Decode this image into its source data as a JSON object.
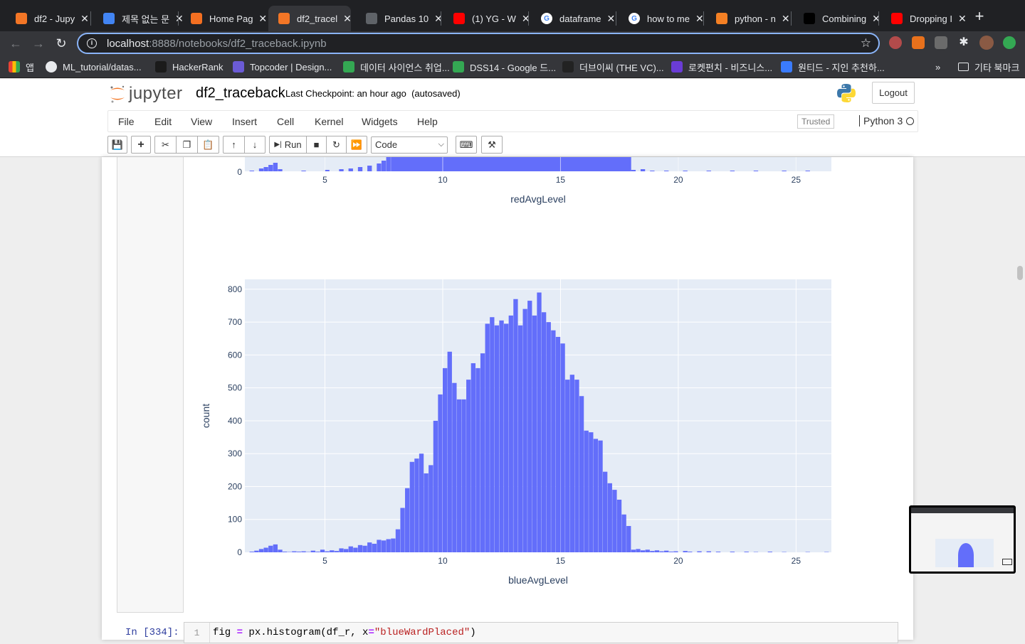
{
  "browser": {
    "tabs": [
      {
        "title": "df2 - Jupy",
        "icon": "jupyter-icon",
        "color": "#f37626"
      },
      {
        "title": "제목 없는 문",
        "icon": "docs-icon",
        "color": "#4285f4"
      },
      {
        "title": "Home Pag",
        "icon": "topcoder-icon",
        "color": "#f36f21"
      },
      {
        "title": "df2_tracel",
        "icon": "jupyter-icon",
        "color": "#f37626"
      },
      {
        "title": "Pandas 10",
        "icon": "globe-icon",
        "color": "#5f6368"
      },
      {
        "title": "(1) YG - W",
        "icon": "youtube-icon",
        "color": "#ff0000"
      },
      {
        "title": "dataframe",
        "icon": "google-icon",
        "color": "#ffffff"
      },
      {
        "title": "how to me",
        "icon": "google-icon",
        "color": "#ffffff"
      },
      {
        "title": "python - n",
        "icon": "stackoverflow-icon",
        "color": "#f48024"
      },
      {
        "title": "Combining",
        "icon": "dev-icon",
        "color": "#000000"
      },
      {
        "title": "Dropping I",
        "icon": "red-square-icon",
        "color": "#ff0000"
      }
    ],
    "url_host": "localhost",
    "url_path": ":8888/notebooks/df2_traceback.ipynb",
    "bookmarks": [
      {
        "label": "앱",
        "icon": "apps-grid-icon"
      },
      {
        "label": "ML_tutorial/datas...",
        "icon": "github-icon"
      },
      {
        "label": "HackerRank",
        "icon": "hackerrank-icon"
      },
      {
        "label": "Topcoder | Design...",
        "icon": "topcoder-icon"
      },
      {
        "label": "데이터 사이언스 취업...",
        "icon": "drive-icon"
      },
      {
        "label": "DSS14 - Google 드...",
        "icon": "drive-icon"
      },
      {
        "label": "더브이씨 (THE VC)...",
        "icon": "thevc-icon"
      },
      {
        "label": "로켓펀치 - 비즈니스...",
        "icon": "rocketpunch-icon"
      },
      {
        "label": "원티드 - 지인 추천하...",
        "icon": "wanted-icon"
      }
    ],
    "bookmarks_overflow": "»",
    "other_bookmarks": "기타 북마크"
  },
  "jupyter": {
    "logo_text": "jupyter",
    "notebook_name": "df2_traceback",
    "checkpoint": "Last Checkpoint: an hour ago",
    "autosave": "(autosaved)",
    "logout": "Logout",
    "menu": [
      "File",
      "Edit",
      "View",
      "Insert",
      "Cell",
      "Kernel",
      "Widgets",
      "Help"
    ],
    "trusted": "Trusted",
    "kernel": "Python 3",
    "run_label": "Run",
    "cell_type": "Code"
  },
  "cell": {
    "prompt": "In [334]:",
    "line_number": "1",
    "code_prefix": "fig ",
    "code_eq": "=",
    "code_mid": " px.histogram(df_r, x",
    "code_eq2": "=",
    "code_str": "\"blueWardPlaced\"",
    "code_end": ")"
  },
  "chart_data": [
    {
      "type": "bar",
      "title": "",
      "xlabel": "redAvgLevel",
      "ylabel": "",
      "visible_y_ticks": [
        0
      ],
      "x_ticks": [
        5,
        10,
        15,
        20,
        25
      ],
      "xlim": [
        1.6,
        26.5
      ],
      "note": "partially scrolled out of view; only the bottom of the bars is visible"
    },
    {
      "type": "bar",
      "title": "",
      "xlabel": "blueAvgLevel",
      "ylabel": "count",
      "xlim": [
        1.6,
        26.5
      ],
      "ylim": [
        0,
        830
      ],
      "x_ticks": [
        5,
        10,
        15,
        20,
        25
      ],
      "y_ticks": [
        0,
        100,
        200,
        300,
        400,
        500,
        600,
        700,
        800
      ],
      "bin_width": 0.2,
      "bar_color": "#636efa",
      "plot_bg": "#e5ecf6",
      "bins": [
        {
          "x": 1.9,
          "y": 2
        },
        {
          "x": 2.1,
          "y": 5
        },
        {
          "x": 2.3,
          "y": 10
        },
        {
          "x": 2.5,
          "y": 14
        },
        {
          "x": 2.7,
          "y": 20
        },
        {
          "x": 2.9,
          "y": 24
        },
        {
          "x": 3.1,
          "y": 8
        },
        {
          "x": 3.3,
          "y": 2
        },
        {
          "x": 3.5,
          "y": 1
        },
        {
          "x": 3.7,
          "y": 3
        },
        {
          "x": 3.9,
          "y": 2
        },
        {
          "x": 4.1,
          "y": 3
        },
        {
          "x": 4.3,
          "y": 1
        },
        {
          "x": 4.5,
          "y": 5
        },
        {
          "x": 4.7,
          "y": 2
        },
        {
          "x": 4.9,
          "y": 8
        },
        {
          "x": 5.1,
          "y": 3
        },
        {
          "x": 5.3,
          "y": 6
        },
        {
          "x": 5.5,
          "y": 4
        },
        {
          "x": 5.7,
          "y": 12
        },
        {
          "x": 5.9,
          "y": 10
        },
        {
          "x": 6.1,
          "y": 18
        },
        {
          "x": 6.3,
          "y": 14
        },
        {
          "x": 6.5,
          "y": 22
        },
        {
          "x": 6.7,
          "y": 20
        },
        {
          "x": 6.9,
          "y": 30
        },
        {
          "x": 7.1,
          "y": 26
        },
        {
          "x": 7.3,
          "y": 38
        },
        {
          "x": 7.5,
          "y": 36
        },
        {
          "x": 7.7,
          "y": 40
        },
        {
          "x": 7.9,
          "y": 42
        },
        {
          "x": 8.1,
          "y": 70
        },
        {
          "x": 8.3,
          "y": 135
        },
        {
          "x": 8.5,
          "y": 195
        },
        {
          "x": 8.7,
          "y": 275
        },
        {
          "x": 8.9,
          "y": 285
        },
        {
          "x": 9.1,
          "y": 300
        },
        {
          "x": 9.3,
          "y": 240
        },
        {
          "x": 9.5,
          "y": 265
        },
        {
          "x": 9.7,
          "y": 400
        },
        {
          "x": 9.9,
          "y": 480
        },
        {
          "x": 10.1,
          "y": 560
        },
        {
          "x": 10.3,
          "y": 610
        },
        {
          "x": 10.5,
          "y": 515
        },
        {
          "x": 10.7,
          "y": 465
        },
        {
          "x": 10.9,
          "y": 465
        },
        {
          "x": 11.1,
          "y": 525
        },
        {
          "x": 11.3,
          "y": 575
        },
        {
          "x": 11.5,
          "y": 560
        },
        {
          "x": 11.7,
          "y": 605
        },
        {
          "x": 11.9,
          "y": 695
        },
        {
          "x": 12.1,
          "y": 715
        },
        {
          "x": 12.3,
          "y": 690
        },
        {
          "x": 12.5,
          "y": 705
        },
        {
          "x": 12.7,
          "y": 695
        },
        {
          "x": 12.9,
          "y": 720
        },
        {
          "x": 13.1,
          "y": 770
        },
        {
          "x": 13.3,
          "y": 690
        },
        {
          "x": 13.5,
          "y": 740
        },
        {
          "x": 13.7,
          "y": 765
        },
        {
          "x": 13.9,
          "y": 720
        },
        {
          "x": 14.1,
          "y": 790
        },
        {
          "x": 14.3,
          "y": 730
        },
        {
          "x": 14.5,
          "y": 700
        },
        {
          "x": 14.7,
          "y": 675
        },
        {
          "x": 14.9,
          "y": 655
        },
        {
          "x": 15.1,
          "y": 635
        },
        {
          "x": 15.3,
          "y": 525
        },
        {
          "x": 15.5,
          "y": 540
        },
        {
          "x": 15.7,
          "y": 525
        },
        {
          "x": 15.9,
          "y": 475
        },
        {
          "x": 16.1,
          "y": 370
        },
        {
          "x": 16.3,
          "y": 365
        },
        {
          "x": 16.5,
          "y": 345
        },
        {
          "x": 16.7,
          "y": 340
        },
        {
          "x": 16.9,
          "y": 245
        },
        {
          "x": 17.1,
          "y": 210
        },
        {
          "x": 17.3,
          "y": 190
        },
        {
          "x": 17.5,
          "y": 160
        },
        {
          "x": 17.7,
          "y": 115
        },
        {
          "x": 17.9,
          "y": 80
        },
        {
          "x": 18.1,
          "y": 8
        },
        {
          "x": 18.3,
          "y": 10
        },
        {
          "x": 18.5,
          "y": 6
        },
        {
          "x": 18.7,
          "y": 8
        },
        {
          "x": 18.9,
          "y": 4
        },
        {
          "x": 19.1,
          "y": 6
        },
        {
          "x": 19.3,
          "y": 3
        },
        {
          "x": 19.5,
          "y": 5
        },
        {
          "x": 19.7,
          "y": 2
        },
        {
          "x": 19.9,
          "y": 3
        },
        {
          "x": 20.3,
          "y": 4
        },
        {
          "x": 20.5,
          "y": 2
        },
        {
          "x": 20.9,
          "y": 3
        },
        {
          "x": 21.3,
          "y": 3
        },
        {
          "x": 21.7,
          "y": 2
        },
        {
          "x": 22.3,
          "y": 2
        },
        {
          "x": 22.9,
          "y": 2
        },
        {
          "x": 23.3,
          "y": 1
        },
        {
          "x": 23.9,
          "y": 2
        },
        {
          "x": 24.5,
          "y": 1
        },
        {
          "x": 25.5,
          "y": 1
        },
        {
          "x": 26.3,
          "y": 1
        }
      ]
    }
  ]
}
